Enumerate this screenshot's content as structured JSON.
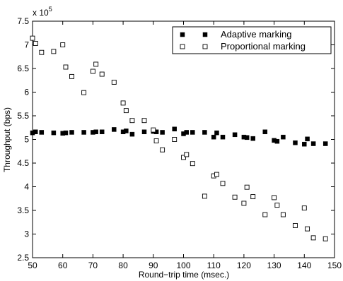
{
  "chart_data": {
    "type": "scatter",
    "title": "",
    "xlabel": "Round−trip time (msec.)",
    "ylabel": "Throughput (bps)",
    "y_multiplier_label": "x 10",
    "y_multiplier_exp": "5",
    "xlim": [
      50,
      150
    ],
    "ylim": [
      250000,
      750000
    ],
    "x_ticks": [
      50,
      60,
      70,
      80,
      90,
      100,
      110,
      120,
      130,
      140,
      150
    ],
    "x_tick_labels": [
      "50",
      "60",
      "70",
      "80",
      "90",
      "100",
      "110",
      "120",
      "130",
      "140",
      "150"
    ],
    "y_ticks": [
      250000,
      300000,
      350000,
      400000,
      450000,
      500000,
      550000,
      600000,
      650000,
      700000,
      750000
    ],
    "y_tick_labels": [
      "2.5",
      "3",
      "3.5",
      "4",
      "4.5",
      "5",
      "5.5",
      "6",
      "6.5",
      "7",
      "7.5"
    ],
    "grid": false,
    "legend_position": "top-right",
    "series": [
      {
        "name": "Adaptive marking",
        "marker": "filled-square",
        "color": "#000000",
        "points": [
          [
            50,
            514000
          ],
          [
            51,
            516000
          ],
          [
            53,
            515000
          ],
          [
            57,
            514000
          ],
          [
            60,
            513000
          ],
          [
            61,
            514000
          ],
          [
            63,
            515000
          ],
          [
            67,
            515000
          ],
          [
            70,
            515000
          ],
          [
            71,
            516000
          ],
          [
            73,
            516000
          ],
          [
            77,
            521000
          ],
          [
            80,
            516000
          ],
          [
            81,
            518000
          ],
          [
            83,
            511000
          ],
          [
            87,
            516000
          ],
          [
            90,
            517000
          ],
          [
            91,
            516000
          ],
          [
            93,
            515000
          ],
          [
            97,
            522000
          ],
          [
            100,
            512000
          ],
          [
            101,
            515000
          ],
          [
            103,
            515000
          ],
          [
            107,
            515000
          ],
          [
            110,
            505000
          ],
          [
            111,
            514000
          ],
          [
            113,
            505000
          ],
          [
            117,
            510000
          ],
          [
            120,
            505000
          ],
          [
            121,
            504000
          ],
          [
            123,
            502000
          ],
          [
            127,
            516000
          ],
          [
            130,
            498000
          ],
          [
            131,
            496000
          ],
          [
            133,
            505000
          ],
          [
            137,
            493000
          ],
          [
            140,
            490000
          ],
          [
            141,
            501000
          ],
          [
            143,
            491000
          ],
          [
            147,
            491000
          ]
        ]
      },
      {
        "name": "Proportional marking",
        "marker": "open-square",
        "color": "#000000",
        "points": [
          [
            50,
            714000
          ],
          [
            51,
            703000
          ],
          [
            53,
            684000
          ],
          [
            57,
            686000
          ],
          [
            60,
            700000
          ],
          [
            61,
            653000
          ],
          [
            63,
            633000
          ],
          [
            67,
            599000
          ],
          [
            70,
            644000
          ],
          [
            71,
            659000
          ],
          [
            73,
            638000
          ],
          [
            77,
            621000
          ],
          [
            80,
            577000
          ],
          [
            81,
            561000
          ],
          [
            83,
            540000
          ],
          [
            87,
            540000
          ],
          [
            90,
            520000
          ],
          [
            91,
            497000
          ],
          [
            93,
            478000
          ],
          [
            97,
            500000
          ],
          [
            100,
            462000
          ],
          [
            101,
            468000
          ],
          [
            103,
            449000
          ],
          [
            107,
            380000
          ],
          [
            110,
            423000
          ],
          [
            111,
            426000
          ],
          [
            113,
            407000
          ],
          [
            117,
            378000
          ],
          [
            120,
            365000
          ],
          [
            121,
            399000
          ],
          [
            123,
            379000
          ],
          [
            127,
            341000
          ],
          [
            130,
            377000
          ],
          [
            131,
            361000
          ],
          [
            133,
            341000
          ],
          [
            137,
            318000
          ],
          [
            140,
            355000
          ],
          [
            141,
            311000
          ],
          [
            143,
            292000
          ],
          [
            147,
            290000
          ]
        ]
      }
    ]
  }
}
